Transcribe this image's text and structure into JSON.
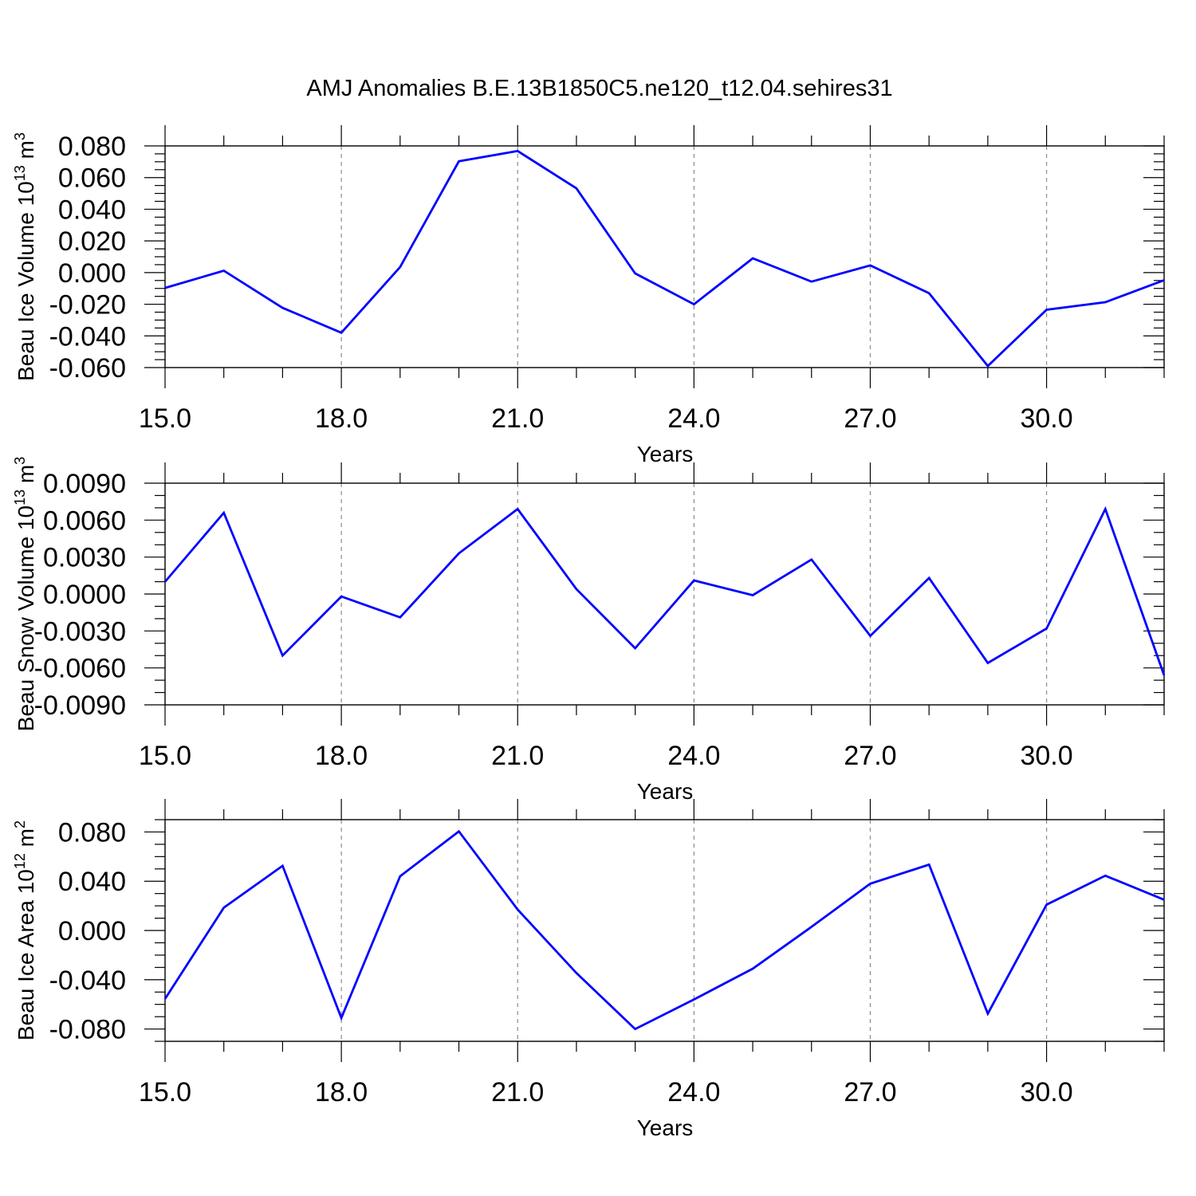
{
  "title": "AMJ Anomalies B.E.13B1850C5.ne120_t12.04.sehires31",
  "colors": {
    "series": "#0000ff",
    "grid": "#8c8c8c",
    "axis": "#000000"
  },
  "chart_data": [
    {
      "type": "line",
      "ylabel": "Beau Ice Volume 10",
      "ylabel_exp": "13",
      "ylabel_unit": " m",
      "ylabel_unit_exp": "3",
      "xlabel": "Years",
      "xlim": [
        15,
        32
      ],
      "ylim": [
        -0.06,
        0.08
      ],
      "yticks": [
        0.08,
        0.06,
        0.04,
        0.02,
        0.0,
        -0.02,
        -0.04,
        -0.06
      ],
      "ytick_labels": [
        "0.080",
        "0.060",
        "0.040",
        "0.020",
        "0.000",
        "-0.020",
        "-0.040",
        "-0.060"
      ],
      "yminor_step": 0.005,
      "xticks": [
        15,
        18,
        21,
        24,
        27,
        30
      ],
      "xtick_labels": [
        "15.0",
        "18.0",
        "21.0",
        "24.0",
        "27.0",
        "30.0"
      ],
      "grid": "vertical dashed at major x ticks",
      "x": [
        15,
        16,
        17,
        18,
        19,
        20,
        21,
        22,
        23,
        24,
        25,
        26,
        27,
        28,
        29,
        30,
        31,
        32
      ],
      "y": [
        -0.0097,
        0.0012,
        -0.0223,
        -0.038,
        0.0035,
        0.0703,
        0.0768,
        0.0532,
        -0.0005,
        -0.02,
        0.009,
        -0.0057,
        0.0045,
        -0.013,
        -0.059,
        -0.0235,
        -0.0187,
        -0.0048
      ]
    },
    {
      "type": "line",
      "ylabel": "Beau Snow Volume 10",
      "ylabel_exp": "13",
      "ylabel_unit": " m",
      "ylabel_unit_exp": "3",
      "xlabel": "Years",
      "xlim": [
        15,
        32
      ],
      "ylim": [
        -0.009,
        0.009
      ],
      "yticks": [
        0.009,
        0.006,
        0.003,
        0.0,
        -0.003,
        -0.006,
        -0.009
      ],
      "ytick_labels": [
        "0.0090",
        "0.0060",
        "0.0030",
        "0.0000",
        "-0.0030",
        "-0.0060",
        "-0.0090"
      ],
      "yminor_step": 0.001,
      "xticks": [
        15,
        18,
        21,
        24,
        27,
        30
      ],
      "xtick_labels": [
        "15.0",
        "18.0",
        "21.0",
        "24.0",
        "27.0",
        "30.0"
      ],
      "grid": "vertical dashed at major x ticks",
      "x": [
        15,
        16,
        17,
        18,
        19,
        20,
        21,
        22,
        23,
        24,
        25,
        26,
        27,
        28,
        29,
        30,
        31,
        32
      ],
      "y": [
        0.001,
        0.0066,
        -0.005,
        -0.0002,
        -0.0019,
        0.0033,
        0.0069,
        0.0004,
        -0.0044,
        0.0011,
        -0.0001,
        0.0028,
        -0.0034,
        0.0013,
        -0.0056,
        -0.0028,
        0.0069,
        -0.0066
      ]
    },
    {
      "type": "line",
      "ylabel": "Beau Ice Area 10",
      "ylabel_exp": "12",
      "ylabel_unit": " m",
      "ylabel_unit_exp": "2",
      "xlabel": "Years",
      "xlim": [
        15,
        32
      ],
      "ylim": [
        -0.09,
        0.09
      ],
      "yticks": [
        0.08,
        0.04,
        0.0,
        -0.04,
        -0.08
      ],
      "ytick_labels": [
        "0.080",
        "0.040",
        "0.000",
        "-0.040",
        "-0.080"
      ],
      "yminor_step": 0.01,
      "xticks": [
        15,
        18,
        21,
        24,
        27,
        30
      ],
      "xtick_labels": [
        "15.0",
        "18.0",
        "21.0",
        "24.0",
        "27.0",
        "30.0"
      ],
      "grid": "vertical dashed at major x ticks",
      "x": [
        15,
        16,
        17,
        18,
        19,
        20,
        21,
        22,
        23,
        24,
        25,
        26,
        27,
        28,
        29,
        30,
        31,
        32
      ],
      "y": [
        -0.0555,
        0.0185,
        0.0525,
        -0.071,
        0.044,
        0.0805,
        0.017,
        -0.0345,
        -0.08,
        -0.056,
        -0.031,
        0.003,
        0.038,
        0.0535,
        -0.0675,
        0.021,
        0.0445,
        0.025
      ]
    }
  ]
}
